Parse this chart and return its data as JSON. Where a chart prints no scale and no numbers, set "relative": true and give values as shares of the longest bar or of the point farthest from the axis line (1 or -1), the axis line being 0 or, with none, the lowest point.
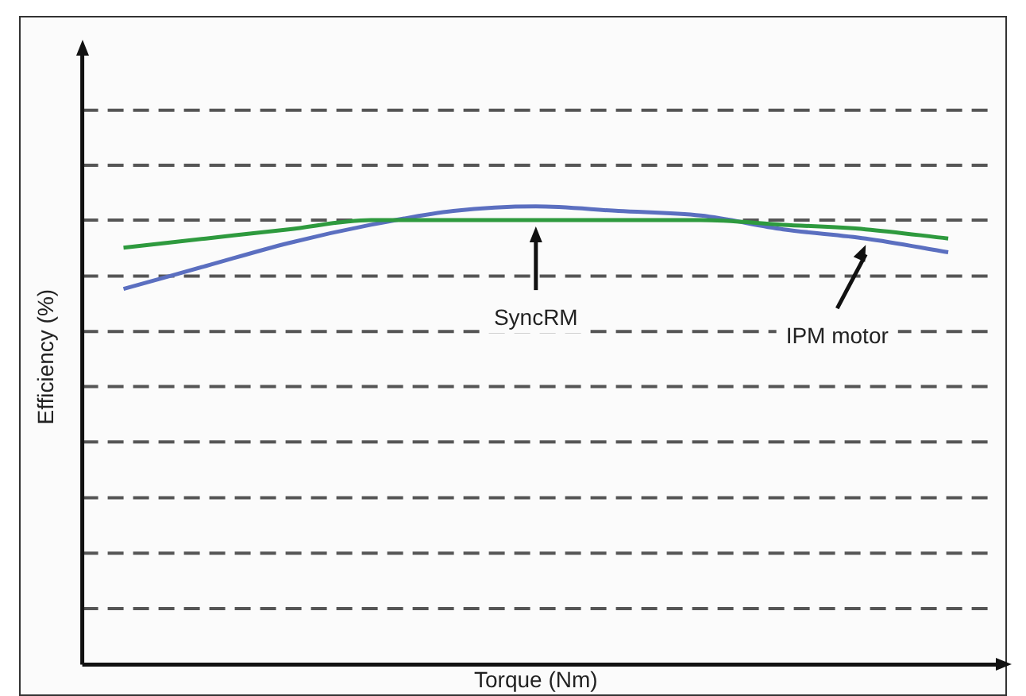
{
  "chart_data": {
    "type": "line",
    "xlabel": "Torque (Nm)",
    "ylabel": "Efficiency (%)",
    "relative": true,
    "categories": [
      null,
      null,
      null,
      null,
      null,
      null,
      null,
      null,
      null,
      null,
      null
    ],
    "series": [
      {
        "color": "#2e9a3e",
        "values": [
          0.91,
          0.93,
          0.95,
          0.97,
          0.97,
          0.97,
          0.97,
          0.97,
          0.96,
          0.95,
          0.93
        ]
      },
      {
        "color": "#5b6fc0",
        "values": [
          0.82,
          0.87,
          0.92,
          0.96,
          0.99,
          1,
          0.99,
          0.98,
          0.95,
          0.93,
          0.9
        ]
      }
    ],
    "ref_lines": [
      {
        "axis": "y",
        "value": 1.21,
        "color": "#555555",
        "line_style": "dashed"
      },
      {
        "axis": "y",
        "value": 1.09,
        "color": "#555555",
        "line_style": "dashed"
      },
      {
        "axis": "y",
        "value": 0.97,
        "color": "#555555",
        "line_style": "dashed"
      },
      {
        "axis": "y",
        "value": 0.848,
        "color": "#555555",
        "line_style": "dashed"
      },
      {
        "axis": "y",
        "value": 0.727,
        "color": "#555555",
        "line_style": "dashed"
      },
      {
        "axis": "y",
        "value": 0.607,
        "color": "#555555",
        "line_style": "dashed"
      },
      {
        "axis": "y",
        "value": 0.486,
        "color": "#555555",
        "line_style": "dashed"
      },
      {
        "axis": "y",
        "value": 0.364,
        "color": "#555555",
        "line_style": "dashed"
      },
      {
        "axis": "y",
        "value": 0.243,
        "color": "#555555",
        "line_style": "dashed"
      },
      {
        "axis": "y",
        "value": 0.122,
        "color": "#555555",
        "line_style": "dashed"
      }
    ],
    "annotations": [
      "SyncRM",
      "IPM motor"
    ],
    "grid": false,
    "legend": false,
    "marker": "none",
    "line_style": "solid"
  }
}
